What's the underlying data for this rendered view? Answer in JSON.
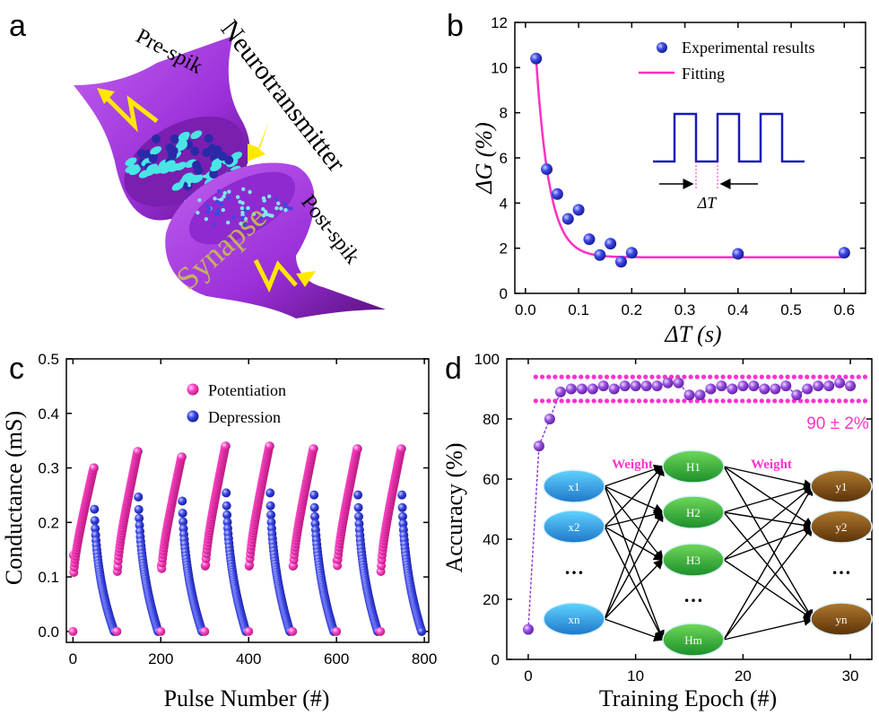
{
  "panels": {
    "a": {
      "letter": "a",
      "labels": {
        "pre": "Pre-spik",
        "neuro": "Neurotransmitter",
        "synapse": "Synapse",
        "post": "Post-spik"
      }
    },
    "b": {
      "letter": "b"
    },
    "c": {
      "letter": "c"
    },
    "d": {
      "letter": "d",
      "band_label": "90 ± 2%",
      "weight_label": "Weight",
      "inputs": [
        "x1",
        "x2",
        "…",
        "xn"
      ],
      "hidden": [
        "H1",
        "H2",
        "H3",
        "…",
        "Hm"
      ],
      "outputs": [
        "y1",
        "y2",
        "…",
        "yn"
      ]
    }
  },
  "colors": {
    "pink": "#ff3fbf",
    "blue": "#2b35d8",
    "purple": "#a050e0",
    "fit": "#ff2fbf",
    "magenta": "#ff33cc"
  },
  "chart_data": [
    {
      "id": "b",
      "type": "scatter",
      "xlabel": "ΔT (s)",
      "ylabel": "ΔG (%)",
      "xlim": [
        -0.02,
        0.64
      ],
      "ylim": [
        0,
        12
      ],
      "xticks": [
        "0.0",
        "0.1",
        "0.2",
        "0.3",
        "0.4",
        "0.5",
        "0.6"
      ],
      "yticks": [
        "0",
        "2",
        "4",
        "6",
        "8",
        "10",
        "12"
      ],
      "legend": [
        "Experimental results",
        "Fitting"
      ],
      "inset_label": "ΔT",
      "series": [
        {
          "name": "Experimental results",
          "x": [
            0.02,
            0.04,
            0.06,
            0.08,
            0.1,
            0.12,
            0.14,
            0.16,
            0.18,
            0.2,
            0.4,
            0.6
          ],
          "y": [
            10.4,
            5.5,
            4.4,
            3.3,
            3.7,
            2.4,
            1.7,
            2.2,
            1.4,
            1.8,
            1.75,
            1.8
          ]
        },
        {
          "name": "Fitting",
          "fit": {
            "a": 28,
            "tau": 0.025,
            "c": 1.6,
            "x0": 0.02,
            "x1": 0.6
          }
        }
      ]
    },
    {
      "id": "c",
      "type": "scatter",
      "xlabel": "Pulse Number (#)",
      "ylabel": "Conductance (mS)",
      "xlim": [
        -15,
        810
      ],
      "ylim": [
        -0.02,
        0.5
      ],
      "xticks": [
        "0",
        "200",
        "400",
        "600",
        "800"
      ],
      "yticks": [
        "0.0",
        "0.1",
        "0.2",
        "0.3",
        "0.4",
        "0.5"
      ],
      "legend": [
        "Potentiation",
        "Depression"
      ],
      "cycles": {
        "starts": [
          0,
          100,
          200,
          300,
          400,
          500,
          600,
          700
        ],
        "maxes": [
          0.3,
          0.33,
          0.32,
          0.34,
          0.34,
          0.335,
          0.335,
          0.335
        ],
        "first_steps": [
          0.14,
          0.11,
          0.12,
          0.12,
          0.12,
          0.12,
          0.13,
          0.11
        ],
        "pot_points": 48,
        "dep_points": 52
      }
    },
    {
      "id": "d",
      "type": "line",
      "xlabel": "Training Epoch (#)",
      "ylabel": "Accuracy (%)",
      "xlim": [
        -2,
        32
      ],
      "ylim": [
        0,
        100
      ],
      "xticks": [
        "0",
        "10",
        "20",
        "30"
      ],
      "yticks": [
        "0",
        "20",
        "40",
        "60",
        "80",
        "100"
      ],
      "x": [
        0,
        1,
        2,
        3,
        4,
        5,
        6,
        7,
        8,
        9,
        10,
        11,
        12,
        13,
        14,
        15,
        16,
        17,
        18,
        19,
        20,
        21,
        22,
        23,
        24,
        25,
        26,
        27,
        28,
        29,
        30
      ],
      "y": [
        10,
        71,
        80,
        89,
        90,
        90,
        90,
        91,
        90,
        91,
        91,
        91,
        91,
        92,
        92,
        88,
        88,
        90,
        91,
        90,
        91,
        91,
        90,
        90,
        91,
        88,
        90,
        91,
        91,
        92,
        91
      ],
      "band": [
        88,
        92
      ]
    }
  ]
}
